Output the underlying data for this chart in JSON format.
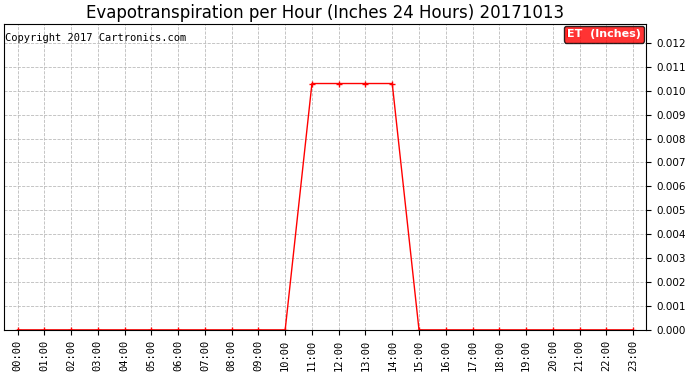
{
  "title": "Evapotranspiration per Hour (Inches 24 Hours) 20171013",
  "copyright": "Copyright 2017 Cartronics.com",
  "legend_label": "ET  (Inches)",
  "line_color": "#ff0000",
  "legend_bg": "#ff0000",
  "legend_text_color": "#ffffff",
  "background_color": "#ffffff",
  "grid_color": "#bbbbbb",
  "x_labels": [
    "00:00",
    "01:00",
    "02:00",
    "03:00",
    "04:00",
    "05:00",
    "06:00",
    "07:00",
    "08:00",
    "09:00",
    "10:00",
    "11:00",
    "12:00",
    "13:00",
    "14:00",
    "15:00",
    "16:00",
    "17:00",
    "18:00",
    "19:00",
    "20:00",
    "21:00",
    "22:00",
    "23:00"
  ],
  "x_values": [
    0,
    1,
    2,
    3,
    4,
    5,
    6,
    7,
    8,
    9,
    10,
    11,
    12,
    13,
    14,
    15,
    16,
    17,
    18,
    19,
    20,
    21,
    22,
    23
  ],
  "y_values": [
    0,
    0,
    0,
    0,
    0,
    0,
    0,
    0,
    0,
    0,
    0,
    0.0103,
    0.0103,
    0.0103,
    0.0103,
    0,
    0,
    0,
    0,
    0,
    0,
    0,
    0,
    0
  ],
  "ylim": [
    0,
    0.0128
  ],
  "yticks": [
    0.0,
    0.001,
    0.002,
    0.003,
    0.004,
    0.005,
    0.006,
    0.007,
    0.008,
    0.009,
    0.01,
    0.011,
    0.012
  ],
  "marker": "+",
  "marker_size": 5,
  "line_width": 1.0,
  "title_fontsize": 12,
  "copyright_fontsize": 7.5,
  "tick_fontsize": 7.5,
  "legend_fontsize": 8
}
